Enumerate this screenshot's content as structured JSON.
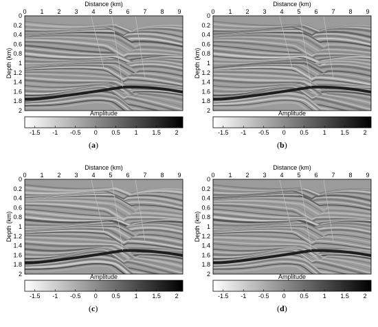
{
  "panels": [
    {
      "id": "a",
      "caption": "a",
      "overlay": "",
      "x_label": "Distance (km)",
      "y_label": "Depth (km)",
      "x_ticks": [
        "0",
        "1",
        "2",
        "3",
        "4",
        "5",
        "6",
        "7",
        "8",
        "9"
      ],
      "y_ticks": [
        "0",
        "0.2",
        "0.4",
        "0.6",
        "0.8",
        "1",
        "1.2",
        "1.4",
        "1.6",
        "1.8",
        "2"
      ],
      "cbar_label": "Amplitude",
      "cbar_ticks": [
        "-1.5",
        "-1",
        "-0.5",
        "0",
        "0.5",
        "1",
        "1.5",
        "2"
      ]
    },
    {
      "id": "b",
      "caption": "b",
      "overlay": "",
      "x_label": "Distance (km)",
      "y_label": "Depth (km)",
      "x_ticks": [
        "0",
        "1",
        "2",
        "3",
        "4",
        "5",
        "6",
        "7",
        "8",
        "9"
      ],
      "y_ticks": [
        "0",
        "0.2",
        "0.4",
        "0.6",
        "0.8",
        "1",
        "1.2",
        "1.4",
        "1.6",
        "1.8",
        "2"
      ],
      "cbar_label": "Amplitude",
      "cbar_ticks": [
        "-1.5",
        "-1",
        "-0.5",
        "0",
        "0.5",
        "1",
        "1.5",
        "2"
      ]
    },
    {
      "id": "c",
      "caption": "c",
      "overlay": "",
      "x_label": "Distance (km)",
      "y_label": "Depth (km)",
      "x_ticks": [
        "0",
        "1",
        "2",
        "3",
        "4",
        "5",
        "6",
        "7",
        "8",
        "9"
      ],
      "y_ticks": [
        "0",
        "0.2",
        "0.4",
        "0.6",
        "0.8",
        "1",
        "1.2",
        "1.4",
        "1.6",
        "1.8",
        "2"
      ],
      "cbar_label": "Amplitude",
      "cbar_ticks": [
        "-1.5",
        "-1",
        "-0.5",
        "0",
        "0.5",
        "1",
        "1.5",
        "2"
      ]
    },
    {
      "id": "d",
      "caption": "d",
      "overlay": "",
      "x_label": "Distance (km)",
      "y_label": "Depth (km)",
      "x_ticks": [
        "0",
        "1",
        "2",
        "3",
        "4",
        "5",
        "6",
        "7",
        "8",
        "9"
      ],
      "y_ticks": [
        "0",
        "0.2",
        "0.4",
        "0.6",
        "0.8",
        "1",
        "1.2",
        "1.4",
        "1.6",
        "1.8",
        "2"
      ],
      "cbar_label": "Amplitude",
      "cbar_ticks": [
        "-1.5",
        "-1",
        "-0.5",
        "0",
        "0.5",
        "1",
        "1.5",
        "2"
      ]
    }
  ],
  "colors": {
    "background_gray": "#9b9b9b",
    "overlay_text": "#2bd12b",
    "colorbar_low": "#ffffff",
    "colorbar_high": "#000000"
  }
}
